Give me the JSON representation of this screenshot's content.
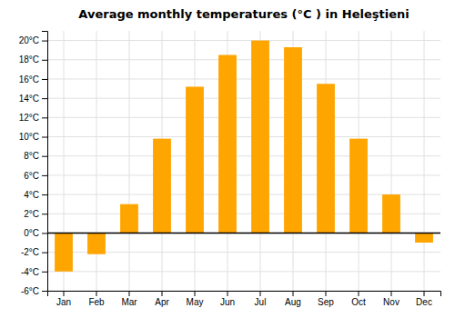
{
  "chart_data": {
    "type": "bar",
    "title": "Average monthly temperatures (°C ) in Heleştieni",
    "categories": [
      "Jan",
      "Feb",
      "Mar",
      "Apr",
      "May",
      "Jun",
      "Jul",
      "Aug",
      "Sep",
      "Oct",
      "Nov",
      "Dec"
    ],
    "values": [
      -4.0,
      -2.2,
      3.0,
      9.8,
      15.2,
      18.5,
      20.0,
      19.3,
      15.5,
      9.8,
      4.0,
      -1.0
    ],
    "color": "#FFA500",
    "ylim": [
      -6,
      21
    ],
    "yticks": [
      {
        "value": -6,
        "label": "-6°C"
      },
      {
        "value": -4,
        "label": "-4°C"
      },
      {
        "value": -2,
        "label": "-2°C"
      },
      {
        "value": 0,
        "label": "0°C"
      },
      {
        "value": 2,
        "label": "2°C"
      },
      {
        "value": 4,
        "label": "4°C"
      },
      {
        "value": 6,
        "label": "6°C"
      },
      {
        "value": 8,
        "label": "8°C"
      },
      {
        "value": 10,
        "label": "10°C"
      },
      {
        "value": 12,
        "label": "12°C"
      },
      {
        "value": 14,
        "label": "14°C"
      },
      {
        "value": 16,
        "label": "16°C"
      },
      {
        "value": 18,
        "label": "18°C"
      },
      {
        "value": 20,
        "label": "20°C"
      }
    ],
    "grid": true
  }
}
